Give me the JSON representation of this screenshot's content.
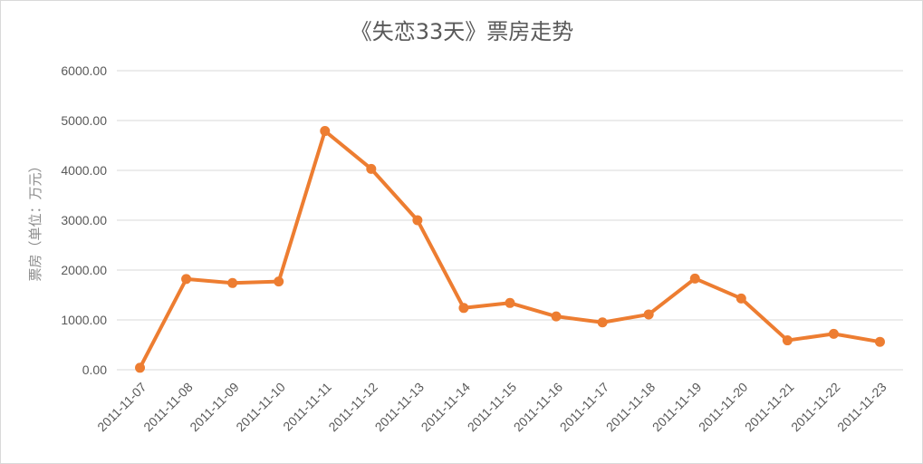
{
  "chart_data": {
    "type": "line",
    "title": "《失恋33天》票房走势",
    "xlabel": "",
    "ylabel": "票房（单位：万元）",
    "categories": [
      "2011-11-07",
      "2011-11-08",
      "2011-11-09",
      "2011-11-10",
      "2011-11-11",
      "2011-11-12",
      "2011-11-13",
      "2011-11-14",
      "2011-11-15",
      "2011-11-16",
      "2011-11-17",
      "2011-11-18",
      "2011-11-19",
      "2011-11-20",
      "2011-11-21",
      "2011-11-22",
      "2011-11-23"
    ],
    "series": [
      {
        "values": [
          40,
          1820,
          1740,
          1770,
          4790,
          4030,
          3000,
          1240,
          1340,
          1070,
          950,
          1110,
          1830,
          1430,
          590,
          720,
          560
        ]
      }
    ],
    "ylim": [
      0,
      6000
    ],
    "yticks": [
      "0.00",
      "1000.00",
      "2000.00",
      "3000.00",
      "4000.00",
      "5000.00",
      "6000.00"
    ],
    "grid": true,
    "legend": "none",
    "line_color": "#ED7D31",
    "grid_color": "#D9D9D9"
  }
}
